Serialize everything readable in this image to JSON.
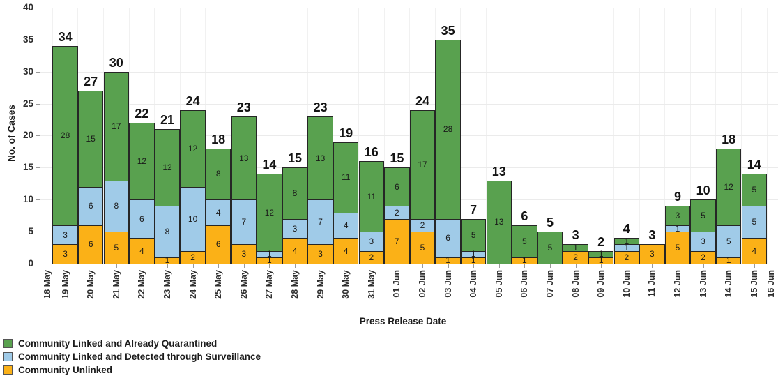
{
  "chart_data": {
    "type": "bar",
    "stacked": true,
    "title": "",
    "xlabel": "Press Release Date",
    "ylabel": "No. of Cases",
    "ylim": [
      0,
      40
    ],
    "yticks": [
      0,
      5,
      10,
      15,
      20,
      25,
      30,
      35,
      40
    ],
    "grid": "horizontal-light",
    "legend_position": "bottom-left",
    "x_axis_tick_labels": [
      "18 May",
      "19 May",
      "20 May",
      "21 May",
      "22 May",
      "23 May",
      "24 May",
      "25 May",
      "26 May",
      "27 May",
      "28 May",
      "29 May",
      "30 May",
      "31 May",
      "01 Jun",
      "02 Jun",
      "03 Jun",
      "04 Jun",
      "05 Jun",
      "06 Jun",
      "07 Jun",
      "08 Jun",
      "09 Jun",
      "10 Jun",
      "11 Jun",
      "12 Jun",
      "13 Jun",
      "14 Jun",
      "15 Jun",
      "16 Jun"
    ],
    "categories": [
      "19 May",
      "20 May",
      "21 May",
      "22 May",
      "23 May",
      "24 May",
      "25 May",
      "26 May",
      "27 May",
      "28 May",
      "29 May",
      "30 May",
      "31 May",
      "01 Jun",
      "02 Jun",
      "03 Jun",
      "04 Jun",
      "05 Jun",
      "06 Jun",
      "07 Jun",
      "08 Jun",
      "09 Jun",
      "10 Jun",
      "11 Jun",
      "12 Jun",
      "13 Jun",
      "14 Jun",
      "15 Jun"
    ],
    "stack_order": "bottom_to_top",
    "series": [
      {
        "name": "Community Unlinked",
        "color": "#FBB117",
        "values": [
          3,
          6,
          5,
          4,
          1,
          2,
          6,
          3,
          1,
          4,
          3,
          4,
          2,
          7,
          5,
          1,
          1,
          0,
          1,
          0,
          2,
          1,
          2,
          3,
          5,
          2,
          1,
          4
        ]
      },
      {
        "name": "Community Linked and Detected through Surveillance",
        "color": "#A0CBE8",
        "values": [
          3,
          6,
          8,
          6,
          8,
          10,
          4,
          7,
          1,
          3,
          7,
          4,
          3,
          2,
          2,
          6,
          1,
          0,
          0,
          0,
          0,
          0,
          1,
          0,
          1,
          3,
          5,
          5
        ]
      },
      {
        "name": "Community Linked and Already Quarantined",
        "color": "#59A14F",
        "values": [
          28,
          15,
          17,
          12,
          12,
          12,
          8,
          13,
          12,
          8,
          13,
          11,
          11,
          6,
          17,
          28,
          5,
          13,
          5,
          5,
          1,
          1,
          1,
          0,
          3,
          5,
          12,
          5
        ]
      }
    ],
    "totals": [
      34,
      27,
      30,
      22,
      21,
      24,
      18,
      23,
      14,
      15,
      23,
      19,
      16,
      15,
      24,
      35,
      7,
      13,
      6,
      5,
      3,
      2,
      4,
      3,
      9,
      10,
      18,
      14
    ],
    "legend": [
      {
        "label": "Community Linked and Already Quarantined",
        "color": "#59A14F"
      },
      {
        "label": "Community Linked and Detected through Surveillance",
        "color": "#A0CBE8"
      },
      {
        "label": "Community Unlinked",
        "color": "#FBB117"
      }
    ],
    "colors": {
      "quarantined_green": "#59A14F",
      "surveillance_blue": "#A0CBE8",
      "unlinked_orange": "#FBB117",
      "bar_border": "#262626",
      "gridline": "#ebebeb",
      "axis_line": "#c9c9c9",
      "text": "#1c1c1c"
    }
  }
}
